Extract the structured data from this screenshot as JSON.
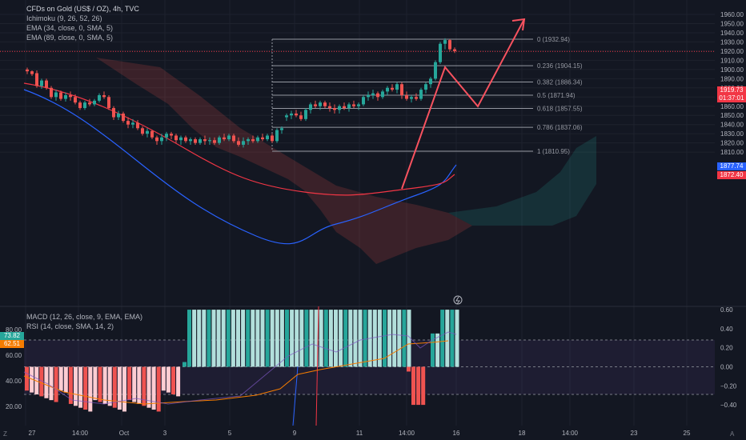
{
  "legend": {
    "title": "CFDs on Gold (US$ / OZ), 4h, TVC",
    "ichimoku": "Ichimoku (9, 26, 52, 26)",
    "ema34": "EMA (34, close, 0, SMA, 5)",
    "ema89": "EMA (89, close, 0, SMA, 5)",
    "macd": "MACD (12, 26, close, 9, EMA, EMA)",
    "rsi": "RSI (14, close, SMA, 14, 2)"
  },
  "price_axis": {
    "labels": [
      "1960.00",
      "1950.00",
      "1940.00",
      "1930.00",
      "1920.00",
      "1910.00",
      "1900.00",
      "1890.00",
      "1880.00",
      "1870.00",
      "1860.00",
      "1850.00",
      "1840.00",
      "1830.00",
      "1820.00",
      "1810.00"
    ],
    "values": [
      1960,
      1950,
      1940,
      1930,
      1920,
      1910,
      1900,
      1890,
      1880,
      1870,
      1860,
      1850,
      1840,
      1830,
      1820,
      1810
    ],
    "current_price": "1919.73",
    "countdown": "01:37:01",
    "ema34_tag": "1877.74",
    "ema89_tag": "1872.40"
  },
  "macd_axis": {
    "labels": [
      "0.60",
      "0.40",
      "0.20",
      "0.00",
      "−0.20",
      "−0.40"
    ],
    "values": [
      0.6,
      0.4,
      0.2,
      0,
      -0.2,
      -0.4
    ]
  },
  "rsi_axis": {
    "labels": [
      "80.00",
      "60.00",
      "40.00",
      "20.00"
    ],
    "values": [
      80,
      60,
      40,
      20
    ],
    "tag_a": "73.82",
    "tag_b": "62.51"
  },
  "time_axis": {
    "labels": [
      "27",
      "14:00",
      "Oct",
      "3",
      "5",
      "9",
      "11",
      "14:00",
      "16",
      "18",
      "14:00",
      "23",
      "25"
    ],
    "x_positions_hint": "positions are layout"
  },
  "fib_levels": [
    {
      "label": "0 (1932.94)",
      "value": 1932.94
    },
    {
      "label": "0.236 (1904.15)",
      "value": 1904.15
    },
    {
      "label": "0.382 (1886.34)",
      "value": 1886.34
    },
    {
      "label": "0.5 (1871.94)",
      "value": 1871.94
    },
    {
      "label": "0.618 (1857.55)",
      "value": 1857.55
    },
    {
      "label": "0.786 (1837.06)",
      "value": 1837.06
    },
    {
      "label": "1 (1810.95)",
      "value": 1810.95
    }
  ],
  "corner": {
    "left": "Z",
    "right": "A"
  },
  "colors": {
    "background": "#131722",
    "up": "#26a69a",
    "down": "#ef5350",
    "text": "#b2b5be",
    "grid": "#1e222d",
    "ema34": "#2962ff",
    "ema89": "#f23645",
    "projection": "#f7525f",
    "price_tag": "#f23645",
    "ema34_tag": "#2962ff"
  }
}
